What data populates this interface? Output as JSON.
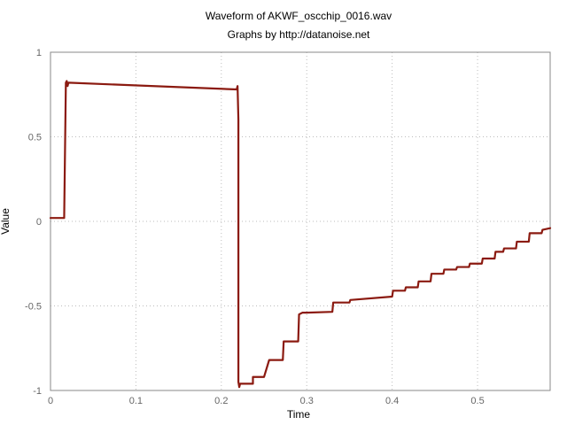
{
  "chart_data": {
    "type": "line",
    "title": "Waveform of AKWF_oscchip_0016.wav",
    "subtitle": "Graphs by http://datanoise.net",
    "xlabel": "Time",
    "ylabel": "Value",
    "xlim": [
      0,
      0.585
    ],
    "ylim": [
      -1,
      1
    ],
    "grid": true,
    "x_ticks": [
      {
        "value": 0,
        "label": "0"
      },
      {
        "value": 0.1,
        "label": "0.1"
      },
      {
        "value": 0.2,
        "label": "0.2"
      },
      {
        "value": 0.3,
        "label": "0.3"
      },
      {
        "value": 0.4,
        "label": "0.4"
      },
      {
        "value": 0.5,
        "label": "0.5"
      }
    ],
    "y_ticks": [
      {
        "value": 1,
        "label": "1"
      },
      {
        "value": 0.5,
        "label": "0.5"
      },
      {
        "value": 0,
        "label": "0"
      },
      {
        "value": -0.5,
        "label": "-0.5"
      },
      {
        "value": -1,
        "label": "-1"
      }
    ],
    "series": [
      {
        "color": "#8b1a10",
        "x": [
          0,
          0.016,
          0.018,
          0.019,
          0.02,
          0.021,
          0.218,
          0.219,
          0.22,
          0.22,
          0.221,
          0.222,
          0.228,
          0.237,
          0.237,
          0.25,
          0.256,
          0.265,
          0.272,
          0.273,
          0.28,
          0.29,
          0.291,
          0.295,
          0.3,
          0.33,
          0.331,
          0.35,
          0.351,
          0.4,
          0.401,
          0.415,
          0.416,
          0.43,
          0.431,
          0.445,
          0.446,
          0.46,
          0.461,
          0.475,
          0.476,
          0.49,
          0.491,
          0.505,
          0.506,
          0.52,
          0.521,
          0.53,
          0.531,
          0.545,
          0.546,
          0.56,
          0.561,
          0.575,
          0.576,
          0.585
        ],
        "y": [
          0.02,
          0.02,
          0.82,
          0.83,
          0.8,
          0.82,
          0.78,
          0.8,
          0.6,
          -0.95,
          -0.98,
          -0.96,
          -0.96,
          -0.96,
          -0.92,
          -0.92,
          -0.82,
          -0.82,
          -0.82,
          -0.71,
          -0.71,
          -0.71,
          -0.55,
          -0.54,
          -0.54,
          -0.535,
          -0.48,
          -0.48,
          -0.465,
          -0.445,
          -0.41,
          -0.41,
          -0.39,
          -0.39,
          -0.355,
          -0.355,
          -0.31,
          -0.31,
          -0.285,
          -0.285,
          -0.27,
          -0.27,
          -0.25,
          -0.25,
          -0.22,
          -0.22,
          -0.18,
          -0.18,
          -0.16,
          -0.16,
          -0.12,
          -0.12,
          -0.07,
          -0.07,
          -0.05,
          -0.04
        ]
      }
    ]
  }
}
